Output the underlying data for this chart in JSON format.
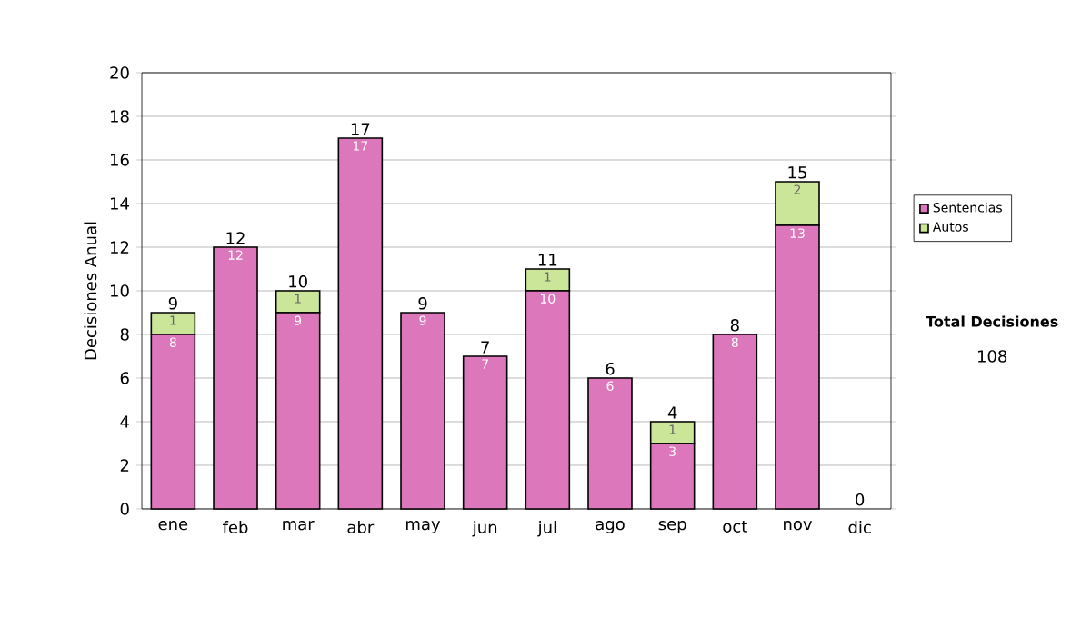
{
  "chart_data": {
    "type": "bar",
    "stacked": true,
    "ylabel": "Decisiones Anual",
    "categories": [
      "ene",
      "feb",
      "mar",
      "abr",
      "may",
      "jun",
      "jul",
      "ago",
      "sep",
      "oct",
      "nov",
      "dic"
    ],
    "series": [
      {
        "name": "Sentencias",
        "color": "#dd77bb",
        "values": [
          8,
          12,
          9,
          17,
          9,
          7,
          10,
          6,
          3,
          8,
          13,
          0
        ],
        "value_labels": [
          "8",
          "12",
          "9",
          "17",
          "9",
          "7",
          "10",
          "6",
          "3",
          "8",
          "13",
          null
        ]
      },
      {
        "name": "Autos",
        "color": "#cce699",
        "values": [
          1,
          0,
          1,
          0,
          0,
          0,
          1,
          0,
          1,
          0,
          2,
          0
        ],
        "value_labels": [
          "1",
          null,
          "1",
          null,
          null,
          null,
          "1",
          null,
          "1",
          null,
          "2",
          null
        ]
      }
    ],
    "totals": [
      "9",
      "12",
      "10",
      "17",
      "9",
      "7",
      "11",
      "6",
      "4",
      "8",
      "15",
      "0"
    ],
    "ylim": [
      0,
      20
    ],
    "yticks": [
      0,
      2,
      4,
      6,
      8,
      10,
      12,
      14,
      16,
      18,
      20
    ],
    "grid": "y",
    "legend": "right",
    "annotations": [
      "Total Decisiones",
      "108"
    ]
  }
}
